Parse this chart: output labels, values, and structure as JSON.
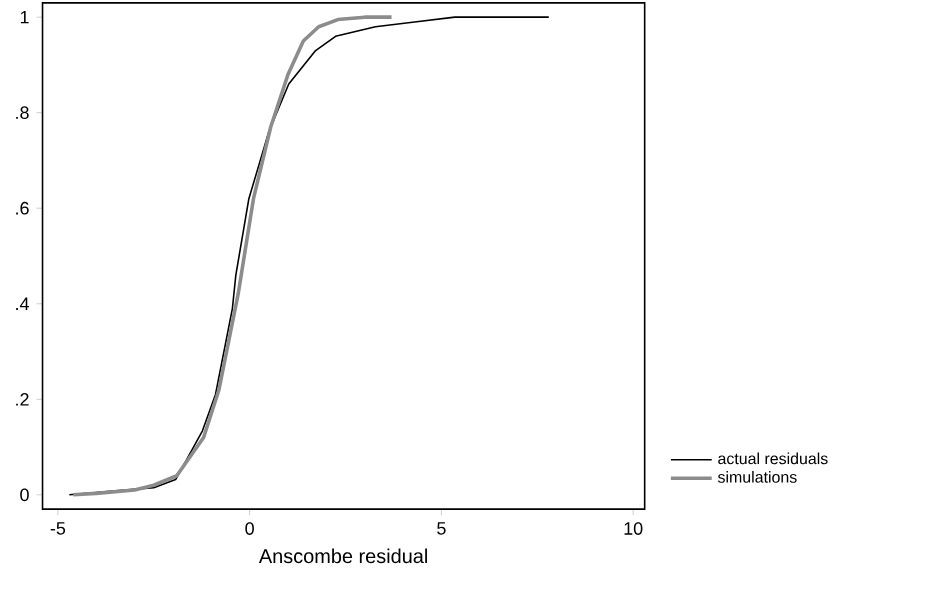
{
  "chart_data": {
    "type": "line",
    "xlabel": "Anscombe residual",
    "xlim": [
      -5.4,
      10.3
    ],
    "ylim": [
      -0.03,
      1.03
    ],
    "xticks": [
      -5,
      0,
      5,
      10
    ],
    "yticks": [
      0,
      {
        "value": 0.2,
        "label": ".2"
      },
      {
        "value": 0.4,
        "label": ".4"
      },
      {
        "value": 0.6,
        "label": ".6"
      },
      {
        "value": 0.8,
        "label": ".8"
      },
      1
    ],
    "legend": "bottom right",
    "grid": false,
    "marker": "none",
    "series": [
      {
        "name": "actual residuals",
        "color": "#000000",
        "x": [
          -4.7,
          -2.5,
          -1.93,
          -1.23,
          -0.89,
          -0.45,
          -0.36,
          -0.02,
          0.5,
          1.02,
          1.72,
          2.24,
          3.28,
          4.3,
          5.35,
          7.8
        ],
        "values": [
          0,
          0.015,
          0.032,
          0.134,
          0.21,
          0.39,
          0.46,
          0.62,
          0.76,
          0.86,
          0.93,
          0.96,
          0.98,
          0.99,
          1.0,
          1.0
        ]
      },
      {
        "name": "simulations",
        "color": "#8c8c8c",
        "x": [
          -4.6,
          -4.0,
          -3.0,
          -2.5,
          -1.9,
          -1.2,
          -0.8,
          -0.3,
          0.1,
          0.55,
          1.0,
          1.4,
          1.8,
          2.3,
          3.0,
          3.7
        ],
        "values": [
          0,
          0.003,
          0.01,
          0.02,
          0.04,
          0.12,
          0.22,
          0.42,
          0.62,
          0.77,
          0.88,
          0.95,
          0.98,
          0.995,
          1.0,
          1.0
        ]
      }
    ]
  }
}
